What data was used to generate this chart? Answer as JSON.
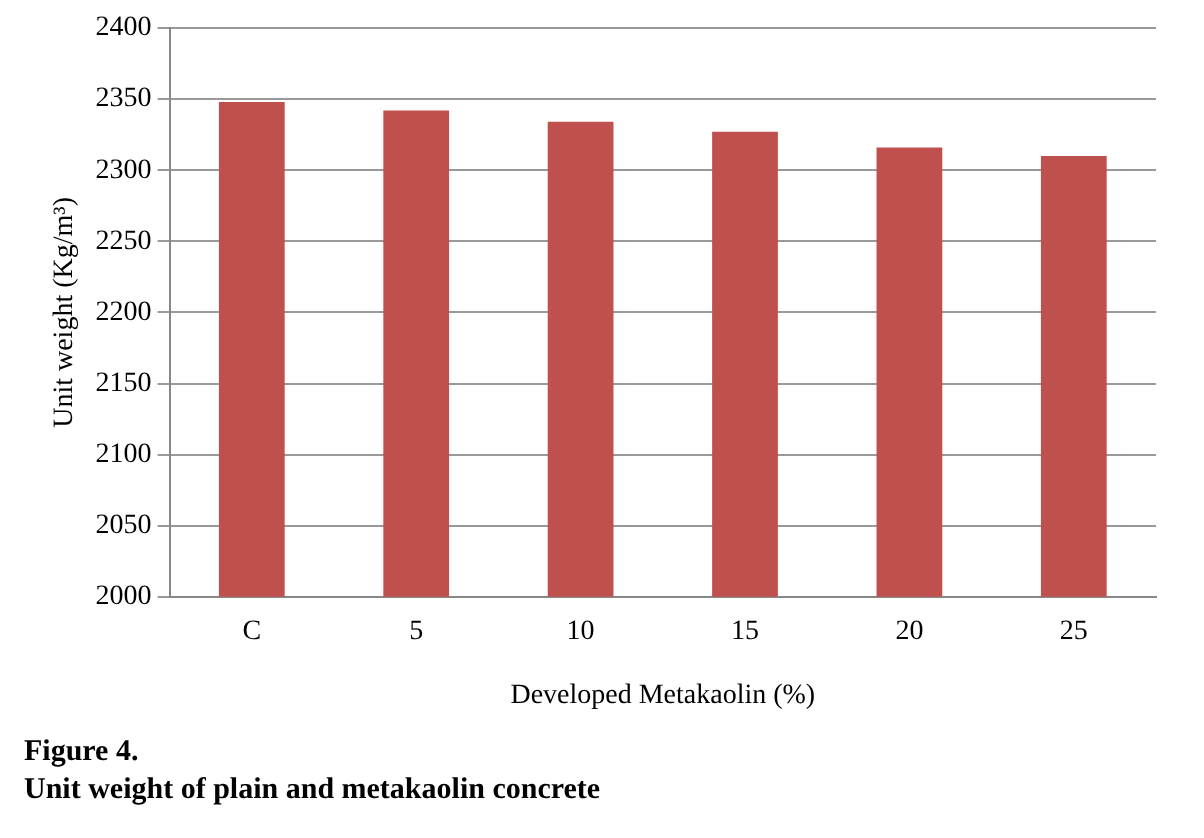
{
  "chart_data": {
    "type": "bar",
    "title": "Unit weight of plain and metakaolin concrete",
    "annotations": [
      "Figure 4."
    ],
    "xlabel": "Developed Metakaolin (%)",
    "ylabel": "Unit weight (Kg/m³)",
    "categories": [
      "C",
      "5",
      "10",
      "15",
      "20",
      "25"
    ],
    "values": [
      2348,
      2342,
      2334,
      2327,
      2316,
      2310
    ],
    "color": "#c0504d",
    "ylim": [
      2000,
      2400
    ],
    "yticks": [
      2000,
      2050,
      2100,
      2150,
      2200,
      2250,
      2300,
      2350,
      2400
    ],
    "grid": "y",
    "legend": false
  }
}
